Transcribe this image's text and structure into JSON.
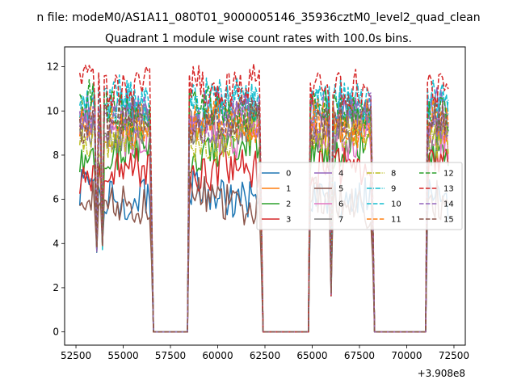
{
  "window": {
    "suptitle": "n file: modeM0/AS1A11_080T01_9000005146_35936cztM0_level2_quad_clean",
    "title": "Quadrant 1 module wise count rates with 100.0s bins."
  },
  "chart_data": {
    "type": "line",
    "title": "Quadrant 1 module wise count rates with 100.0s bins.",
    "xlabel": "",
    "ylabel": "",
    "x_offset_label": "+3.908e8",
    "xlim": [
      51900,
      73100
    ],
    "ylim": [
      -0.6,
      12.9
    ],
    "xticks": [
      52500,
      55000,
      57500,
      60000,
      62500,
      65000,
      67500,
      70000,
      72500
    ],
    "xtick_labels": [
      "52500",
      "55000",
      "57500",
      "60000",
      "62500",
      "65000",
      "67500",
      "70000",
      "72500"
    ],
    "yticks": [
      0,
      2,
      4,
      6,
      8,
      10,
      12
    ],
    "ytick_labels": [
      "0",
      "2",
      "4",
      "6",
      "8",
      "10",
      "12"
    ],
    "grid": false,
    "legend": {
      "placement": "center-right",
      "ncol": 4
    },
    "bin_seconds": 100,
    "segments": [
      {
        "start": 52700,
        "end": 56400,
        "edge_end": 56600
      },
      {
        "start": 58500,
        "end": 62200,
        "edge_start": 58400,
        "edge_end": 62400
      },
      {
        "start": 64900,
        "end": 68100,
        "edge_start": 64800,
        "edge_end": 68300
      },
      {
        "start": 71100,
        "end": 72200,
        "edge_start": 71000
      }
    ],
    "gaps": [
      {
        "start": 56600,
        "end": 58400,
        "value": 0
      },
      {
        "start": 62400,
        "end": 64800,
        "value": 0
      },
      {
        "start": 68300,
        "end": 71000,
        "value": 0
      }
    ],
    "dips": [
      {
        "x": 53600,
        "value": 3.8
      },
      {
        "x": 53900,
        "value": 3.9
      },
      {
        "x": 66000,
        "value": 1.8
      }
    ],
    "series": [
      {
        "name": "0",
        "color": "#1f77b4",
        "dash": "solid",
        "level": 6.3
      },
      {
        "name": "1",
        "color": "#ff7f0e",
        "dash": "solid",
        "level": 9.6
      },
      {
        "name": "2",
        "color": "#2ca02c",
        "dash": "solid",
        "level": 8.2
      },
      {
        "name": "3",
        "color": "#d62728",
        "dash": "solid",
        "level": 7.2
      },
      {
        "name": "4",
        "color": "#9467bd",
        "dash": "solid",
        "level": 9.9
      },
      {
        "name": "5",
        "color": "#8c564b",
        "dash": "solid",
        "level": 5.9
      },
      {
        "name": "6",
        "color": "#e377c2",
        "dash": "solid",
        "level": 9.0
      },
      {
        "name": "7",
        "color": "#7f7f7f",
        "dash": "solid",
        "level": 9.3
      },
      {
        "name": "8",
        "color": "#bcbd22",
        "dash": "dashdot",
        "level": 8.8
      },
      {
        "name": "9",
        "color": "#17becf",
        "dash": "dashdot",
        "level": 10.1
      },
      {
        "name": "10",
        "color": "#17becf",
        "dash": "dashed",
        "level": 10.4
      },
      {
        "name": "11",
        "color": "#ff7f0e",
        "dash": "dashed",
        "level": 9.4
      },
      {
        "name": "12",
        "color": "#2ca02c",
        "dash": "dashed",
        "level": 10.2
      },
      {
        "name": "13",
        "color": "#d62728",
        "dash": "dashed",
        "level": 11.2
      },
      {
        "name": "14",
        "color": "#9467bd",
        "dash": "dashed",
        "level": 9.7
      },
      {
        "name": "15",
        "color": "#8c564b",
        "dash": "dashed",
        "level": 9.5
      }
    ]
  }
}
